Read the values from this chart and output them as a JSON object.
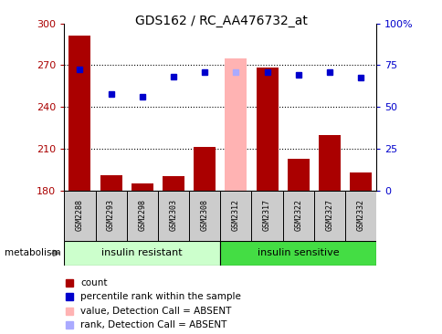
{
  "title": "GDS162 / RC_AA476732_at",
  "samples": [
    "GSM2288",
    "GSM2293",
    "GSM2298",
    "GSM2303",
    "GSM2308",
    "GSM2312",
    "GSM2317",
    "GSM2322",
    "GSM2327",
    "GSM2332"
  ],
  "counts": [
    291,
    191,
    185,
    190,
    211,
    275,
    268,
    203,
    220,
    193
  ],
  "percentile_ranks": [
    267,
    249,
    247,
    262,
    265,
    265,
    265,
    263,
    265,
    261
  ],
  "absent_flags": [
    false,
    false,
    false,
    false,
    false,
    true,
    false,
    false,
    false,
    false
  ],
  "y_min": 180,
  "y_max": 300,
  "y_ticks": [
    180,
    210,
    240,
    270,
    300
  ],
  "y_right_ticks": [
    0,
    25,
    50,
    75,
    100
  ],
  "y_right_labels": [
    "0",
    "25",
    "50",
    "75",
    "100%"
  ],
  "group1_label": "insulin resistant",
  "group2_label": "insulin sensitive",
  "group1_count": 5,
  "group2_count": 5,
  "bar_color": "#aa0000",
  "absent_bar_color": "#ffb3b3",
  "dot_color": "#0000cc",
  "absent_dot_color": "#aaaaff",
  "group1_bg": "#ccffcc",
  "group2_bg": "#44dd44",
  "sample_bg": "#cccccc",
  "metabolism_label": "metabolism",
  "legend_items": [
    {
      "label": "count",
      "color": "#aa0000"
    },
    {
      "label": "percentile rank within the sample",
      "color": "#0000cc"
    },
    {
      "label": "value, Detection Call = ABSENT",
      "color": "#ffb3b3"
    },
    {
      "label": "rank, Detection Call = ABSENT",
      "color": "#aaaaff"
    }
  ]
}
